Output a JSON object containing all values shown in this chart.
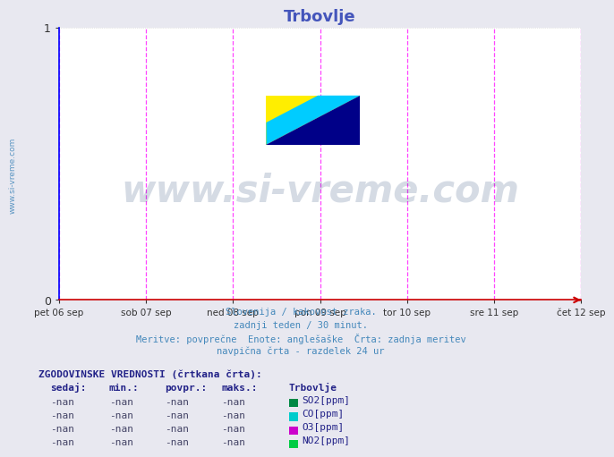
{
  "title": "Trbovlje",
  "title_color": "#4455bb",
  "background_color": "#e8e8f0",
  "plot_bg_color": "#ffffff",
  "xlim": [
    0,
    1
  ],
  "ylim": [
    0,
    1
  ],
  "ytick_labels": [
    "0",
    "1"
  ],
  "ytick_positions": [
    0,
    1
  ],
  "xtick_labels": [
    "pet 06 sep",
    "sob 07 sep",
    "ned 08 sep",
    "pon 09 sep",
    "tor 10 sep",
    "sre 11 sep",
    "čet 12 sep"
  ],
  "xtick_positions": [
    0.0,
    0.1667,
    0.3333,
    0.5,
    0.6667,
    0.8333,
    1.0
  ],
  "vline_color": "#ff44ff",
  "vline_positions": [
    0.1667,
    0.3333,
    0.5,
    0.6667,
    0.8333,
    1.0
  ],
  "grid_color": "#cccccc",
  "left_spine_color": "#0000ff",
  "bottom_spine_color": "#cc0000",
  "watermark_text": "www.si-vreme.com",
  "watermark_color": "#1a3a6e",
  "watermark_alpha": 0.18,
  "subtitle_lines": [
    "Slovenija / kakovost zraka.",
    "zadnji teden / 30 minut.",
    "Meritve: povprečne  Enote: anglešaške  Črta: zadnja meritev",
    "navpična črta - razdelek 24 ur"
  ],
  "subtitle_color": "#4488bb",
  "table_header": "ZGODOVINSKE VREDNOSTI (črtkana črta):",
  "table_col_headers": [
    "sedaj:",
    "min.:",
    "povpr.:",
    "maks.:",
    "Trbovlje"
  ],
  "table_rows": [
    [
      "-nan",
      "-nan",
      "-nan",
      "-nan",
      "SO2[ppm]"
    ],
    [
      "-nan",
      "-nan",
      "-nan",
      "-nan",
      "CO[ppm]"
    ],
    [
      "-nan",
      "-nan",
      "-nan",
      "-nan",
      "O3[ppm]"
    ],
    [
      "-nan",
      "-nan",
      "-nan",
      "-nan",
      "NO2[ppm]"
    ]
  ],
  "legend_colors": [
    "#008844",
    "#00cccc",
    "#cc00cc",
    "#00cc44"
  ],
  "logo_yellow": "#ffee00",
  "logo_cyan": "#00ccff",
  "logo_blue": "#000088",
  "sidebar_text": "www.si-vreme.com",
  "sidebar_color": "#4488bb"
}
